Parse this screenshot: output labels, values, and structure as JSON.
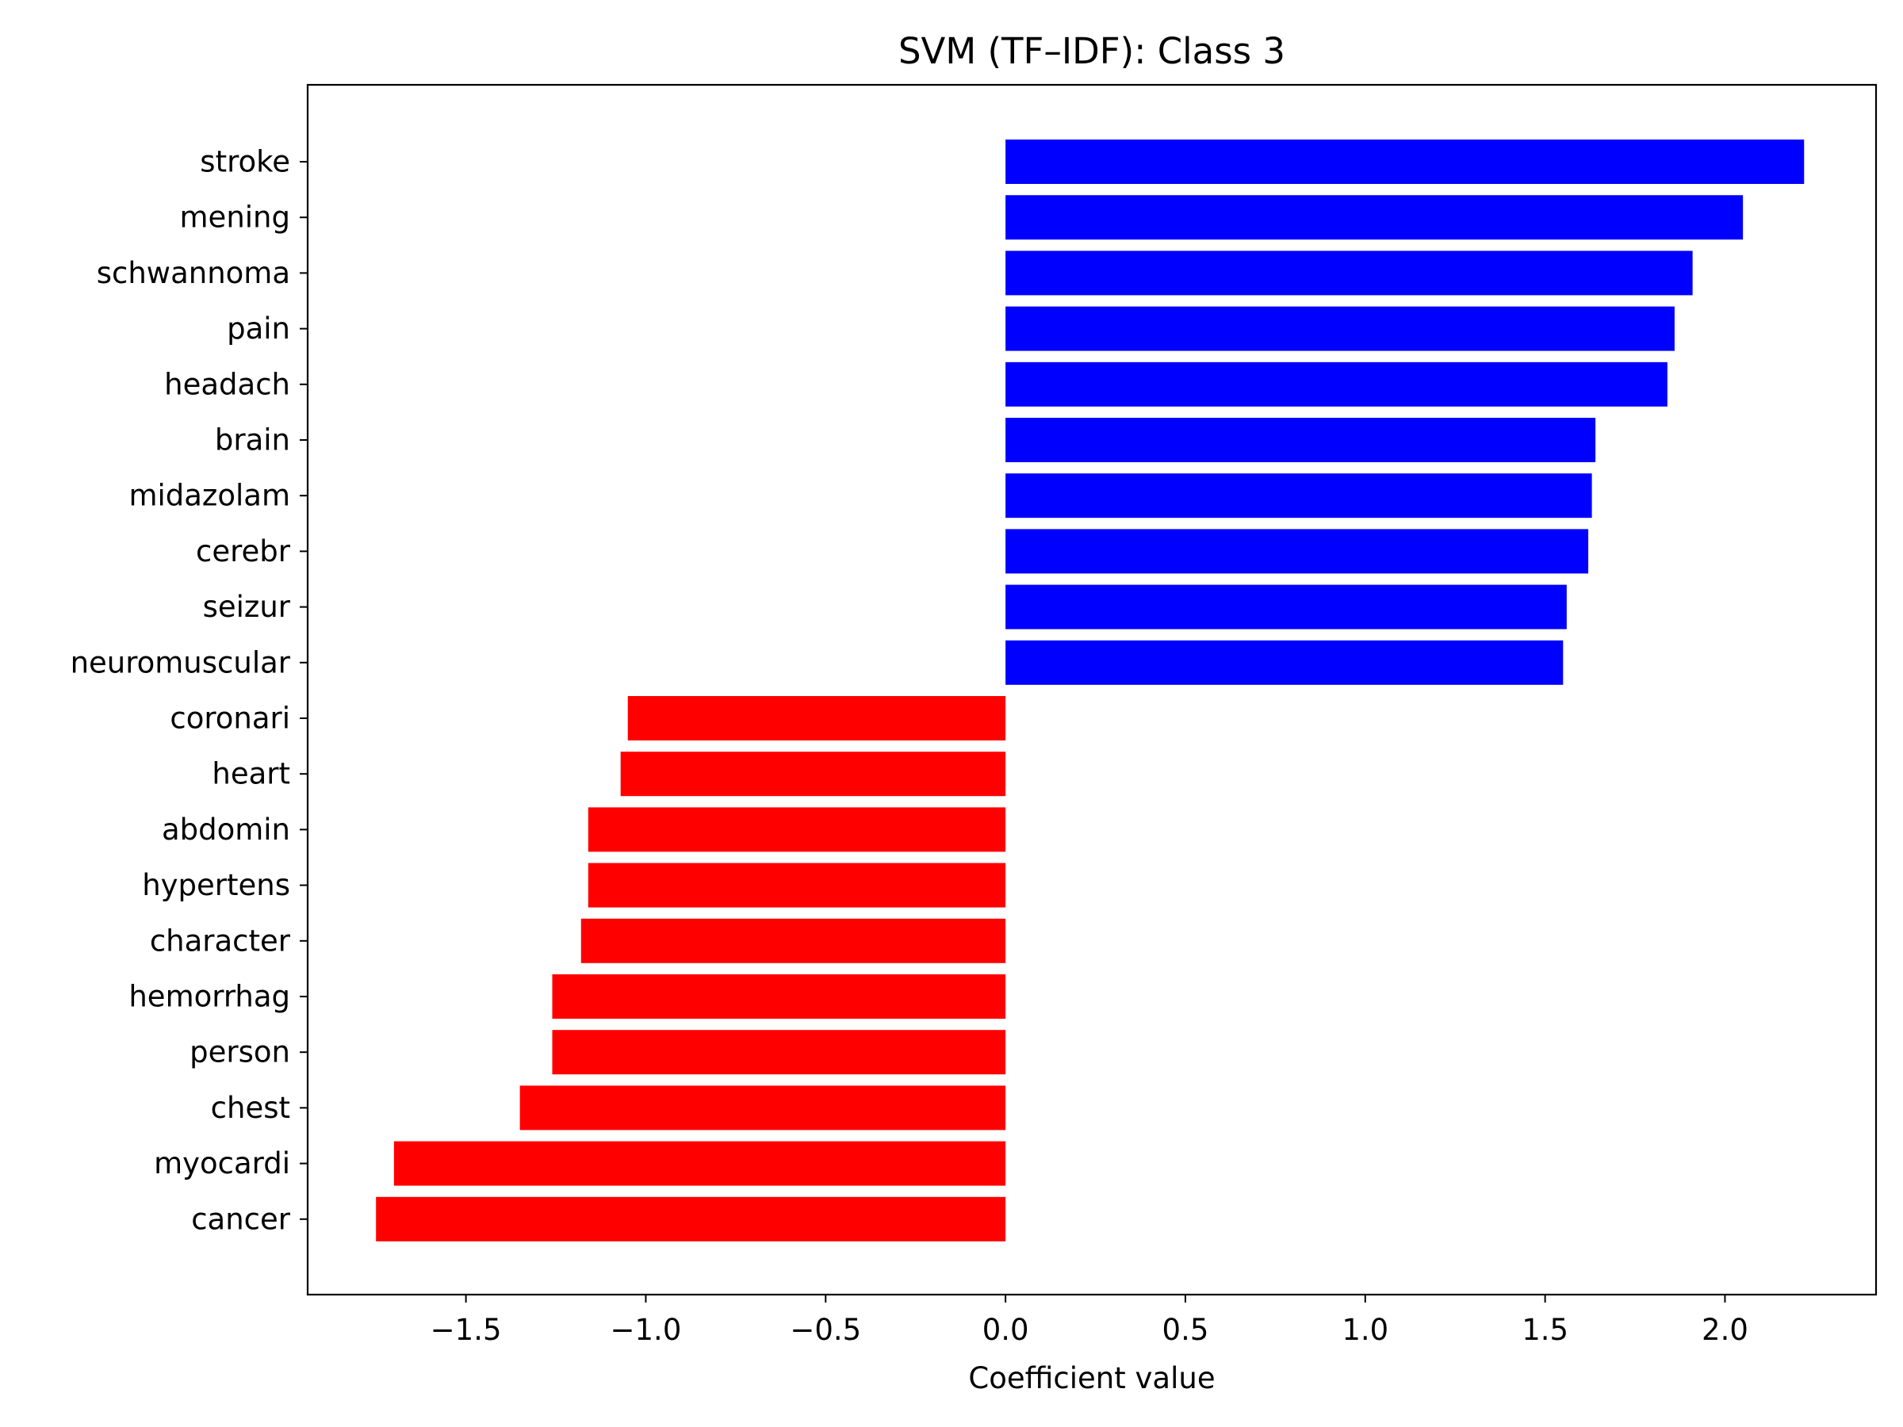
{
  "chart_data": {
    "type": "bar",
    "orientation": "horizontal",
    "title": "SVM (TF–IDF): Class 3",
    "xlabel": "Coefficient value",
    "ylabel": "",
    "xlim": [
      -1.94,
      2.42
    ],
    "xticks": [
      -1.5,
      -1.0,
      -0.5,
      0.0,
      0.5,
      1.0,
      1.5,
      2.0
    ],
    "xtick_labels": [
      "−1.5",
      "−1.0",
      "−0.5",
      "0.0",
      "0.5",
      "1.0",
      "1.5",
      "2.0"
    ],
    "grid": false,
    "legend": "none",
    "categories": [
      "stroke",
      "mening",
      "schwannoma",
      "pain",
      "headach",
      "brain",
      "midazolam",
      "cerebr",
      "seizur",
      "neuromuscular",
      "coronari",
      "heart",
      "abdomin",
      "hypertens",
      "character",
      "hemorrhag",
      "person",
      "chest",
      "myocardi",
      "cancer"
    ],
    "values": [
      2.22,
      2.05,
      1.91,
      1.86,
      1.84,
      1.64,
      1.63,
      1.62,
      1.56,
      1.55,
      -1.05,
      -1.07,
      -1.16,
      -1.16,
      -1.18,
      -1.26,
      -1.26,
      -1.35,
      -1.7,
      -1.75
    ],
    "colors": {
      "positive": "#0000ff",
      "negative": "#ff0000"
    }
  }
}
